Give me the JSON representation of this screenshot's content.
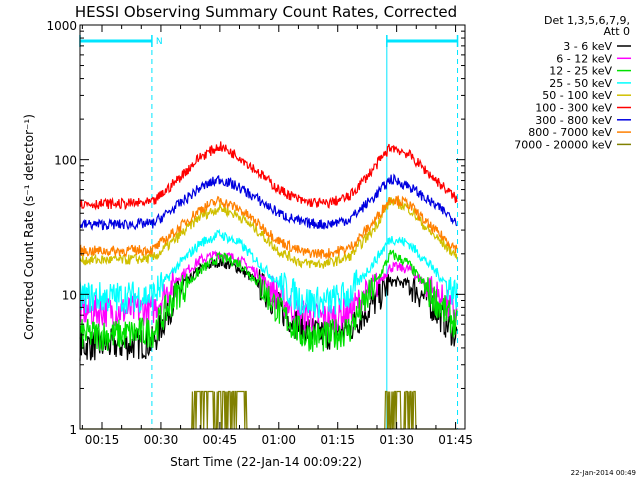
{
  "chart_data": {
    "type": "line",
    "title": "HESSI Observing Summary Count Rates, Corrected",
    "xlabel": "Start Time (22-Jan-14 00:09:22)",
    "ylabel": "Corrected Count Rate (s⁻¹ detector⁻¹)",
    "y_scale": "log",
    "ylim": [
      1,
      1000
    ],
    "xlim": [
      "00:09",
      "01:48"
    ],
    "x_tick_labels": [
      "00:15",
      "00:30",
      "00:45",
      "01:00",
      "01:15",
      "01:30",
      "01:45"
    ],
    "x_tick_minutes": [
      15,
      30,
      45,
      60,
      75,
      90,
      105
    ],
    "y_tick_labels": [
      "1",
      "10",
      "100",
      "1000"
    ],
    "y_tick_values": [
      1,
      10,
      100,
      1000
    ],
    "grid": false,
    "legend_placement": "right",
    "legend_header": [
      "Det 1,3,5,6,7,9,",
      "Att 0"
    ],
    "timestamp": "22-Jan-2014 00:49",
    "night_marker_label": "N",
    "night_intervals": [
      {
        "start": 9.4,
        "end": 27.7
      },
      {
        "start": 87.5,
        "end": 105.5
      }
    ],
    "x_minutes": [
      9.4,
      20,
      28,
      34,
      40,
      45,
      50,
      55,
      60,
      66,
      72,
      78,
      84,
      88.5,
      93,
      98,
      105.5
    ],
    "series": [
      {
        "name": "3 - 6 keV",
        "color": "#000000",
        "values": [
          4.2,
          4.2,
          4.4,
          10,
          15.5,
          17.5,
          15.5,
          12,
          8,
          5.5,
          5,
          5.5,
          8.5,
          12.5,
          12,
          9,
          4.8
        ]
      },
      {
        "name": "6 - 12 keV",
        "color": "#ff00ff",
        "values": [
          7.5,
          7.5,
          7.8,
          13,
          18,
          20,
          18,
          14,
          9.5,
          7,
          6.6,
          7.5,
          11,
          16,
          15.5,
          11.5,
          7
        ]
      },
      {
        "name": "12 - 25 keV",
        "color": "#00e000",
        "values": [
          5,
          5,
          5.3,
          10,
          15,
          19,
          17,
          12,
          7.5,
          5,
          4.8,
          5.5,
          11,
          20,
          17,
          10.5,
          5.8
        ]
      },
      {
        "name": "25 - 50 keV",
        "color": "#00ffff",
        "values": [
          9.5,
          9.5,
          9.8,
          16,
          24,
          28,
          24,
          17,
          12,
          9,
          8.6,
          10,
          17,
          26,
          24,
          17,
          9.8
        ]
      },
      {
        "name": "50 - 100 keV",
        "color": "#d0c000",
        "values": [
          18,
          18,
          18.5,
          26,
          38,
          44,
          38,
          29,
          21,
          17,
          16.8,
          19,
          30,
          50,
          44,
          30,
          19
        ]
      },
      {
        "name": "100 - 300 keV",
        "color": "#ff0000",
        "values": [
          47,
          47,
          48,
          70,
          105,
          126,
          105,
          80,
          60,
          49,
          47,
          53,
          85,
          125,
          110,
          80,
          50
        ]
      },
      {
        "name": "300 - 800 keV",
        "color": "#0000e0",
        "values": [
          33,
          33,
          33.5,
          45,
          62,
          72,
          62,
          50,
          40,
          34,
          33,
          36,
          52,
          72,
          64,
          50,
          35
        ]
      },
      {
        "name": "800 - 7000 keV",
        "color": "#ff8000",
        "values": [
          21,
          21,
          21.5,
          30,
          43,
          50,
          43,
          33,
          25,
          20.5,
          20,
          22,
          34,
          52,
          47,
          33,
          21.5
        ]
      },
      {
        "name": "7000 - 20000 keV",
        "color": "#808000",
        "values": [
          1,
          1,
          1,
          1,
          1.9,
          1.9,
          1.9,
          1,
          1,
          1,
          1,
          1,
          1,
          1.9,
          1.9,
          1,
          1
        ]
      }
    ]
  }
}
